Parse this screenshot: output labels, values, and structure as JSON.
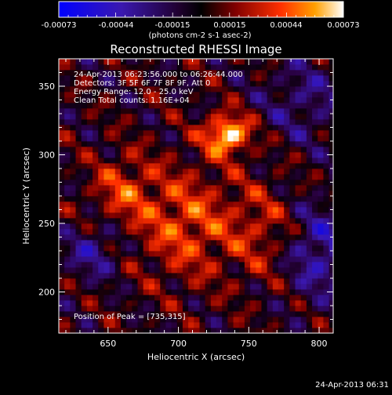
{
  "chart_data": {
    "type": "heatmap",
    "title": "Reconstructed RHESSI Image",
    "xlabel": "Heliocentric X (arcsec)",
    "ylabel": "Heliocentric Y (arcsec)",
    "xlim": [
      615,
      810
    ],
    "ylim": [
      170,
      370
    ],
    "xticks": [
      "650",
      "700",
      "750",
      "800"
    ],
    "yticks": [
      "200",
      "250",
      "300",
      "350"
    ],
    "colorbar": {
      "ticks": [
        "-0.00073",
        "-0.00044",
        "-0.00015",
        "0.00015",
        "0.00044",
        "0.00073"
      ],
      "unit_label": "(photons cm-2 s-1 asec-2)",
      "range": [
        -0.00073,
        0.00073
      ]
    },
    "annotations": {
      "line1": "24-Apr-2013 06:23:56.000 to 06:26:44.000",
      "line2": "Detectors: 3F 5F 6F 7F 8F 9F, Att 0",
      "line3": "Energy Range: 12.0 - 25.0 keV",
      "line4": "Clean     Total counts: 1.16E+04",
      "peak": "Position of Peak = [735,315]"
    },
    "peak_position": [
      735,
      315
    ],
    "timestamp": "24-Apr-2013 06:31"
  }
}
